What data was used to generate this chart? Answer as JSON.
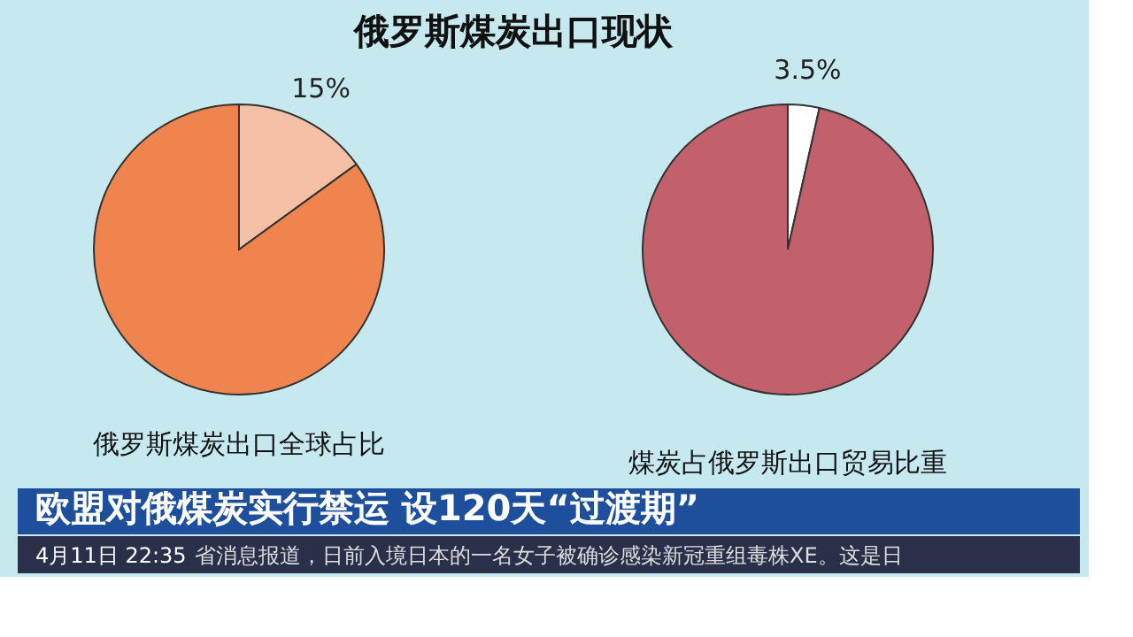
{
  "chart_data": [
    {
      "type": "pie",
      "title": "俄罗斯煤炭出口现状",
      "categories": [
        null,
        null
      ],
      "values": [
        15,
        85
      ],
      "colors": [
        "#f6c0a6",
        "#f0844f"
      ],
      "value_labels": [
        "15%",
        null
      ],
      "annotations": [
        "俄罗斯煤炭出口全球占比"
      ]
    },
    {
      "type": "pie",
      "categories": [
        null,
        null
      ],
      "values": [
        3.5,
        96.5
      ],
      "colors": [
        "#ffffff",
        "#c2616b"
      ],
      "value_labels": [
        "3.5%",
        null
      ],
      "annotations": [
        "煤炭占俄罗斯出口贸易比重"
      ]
    },
    {
      "type": "other",
      "annotations": [
        "欧盟对俄煤炭实行禁运 设120天“过渡期”",
        "4月11日 22:35",
        "省消息报道，日前入境日本的一名女子被确诊感染新冠重组毒株XE。这是日"
      ]
    }
  ]
}
